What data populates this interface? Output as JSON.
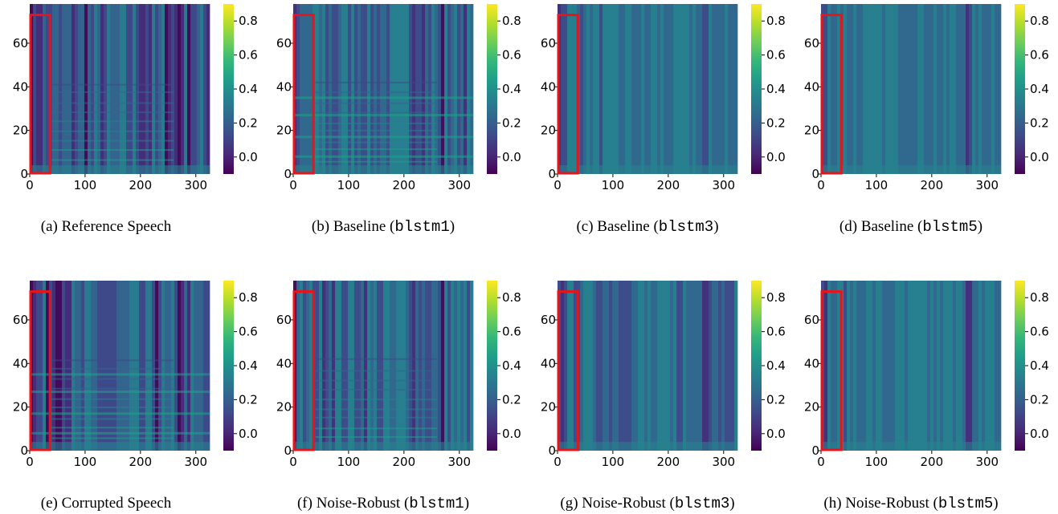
{
  "colors": {
    "viridis": [
      "#440154",
      "#482878",
      "#3e4989",
      "#31688e",
      "#26828e",
      "#1f9e89",
      "#35b779",
      "#6ece58",
      "#b5de2b",
      "#fde725"
    ],
    "highlight_box": "#e8141a"
  },
  "chart_data": [
    {
      "type": "heatmap",
      "panel": "a",
      "caption": "(a) Reference Speech",
      "caption_code": "",
      "xlim": [
        0,
        325
      ],
      "ylim": [
        0,
        78
      ],
      "xticks": [
        0,
        100,
        200,
        300
      ],
      "yticks": [
        0,
        20,
        40,
        60
      ],
      "colorbar": {
        "range": [
          -0.1,
          0.9
        ],
        "ticks": [
          "0.0",
          "0.2",
          "0.4",
          "0.6",
          "0.8"
        ]
      },
      "highlight": {
        "x": [
          0,
          38
        ],
        "y": [
          0,
          73
        ]
      }
    },
    {
      "type": "heatmap",
      "panel": "b",
      "caption": "(b) Baseline (",
      "caption_code": "blstm1",
      "caption_end": ")",
      "xlim": [
        0,
        325
      ],
      "ylim": [
        0,
        78
      ],
      "xticks": [
        0,
        100,
        200,
        300
      ],
      "yticks": [
        0,
        20,
        40,
        60
      ],
      "colorbar": {
        "range": [
          -0.1,
          0.9
        ],
        "ticks": [
          "0.0",
          "0.2",
          "0.4",
          "0.6",
          "0.8"
        ]
      },
      "highlight": {
        "x": [
          0,
          38
        ],
        "y": [
          0,
          73
        ]
      }
    },
    {
      "type": "heatmap",
      "panel": "c",
      "caption": "(c) Baseline (",
      "caption_code": "blstm3",
      "caption_end": ")",
      "xlim": [
        0,
        325
      ],
      "ylim": [
        0,
        78
      ],
      "xticks": [
        0,
        100,
        200,
        300
      ],
      "yticks": [
        0,
        20,
        40,
        60
      ],
      "colorbar": {
        "range": [
          -0.1,
          0.9
        ],
        "ticks": [
          "0.0",
          "0.2",
          "0.4",
          "0.6",
          "0.8"
        ]
      },
      "highlight": {
        "x": [
          0,
          38
        ],
        "y": [
          0,
          73
        ]
      }
    },
    {
      "type": "heatmap",
      "panel": "d",
      "caption": "(d) Baseline (",
      "caption_code": "blstm5",
      "caption_end": ")",
      "xlim": [
        0,
        325
      ],
      "ylim": [
        0,
        78
      ],
      "xticks": [
        0,
        100,
        200,
        300
      ],
      "yticks": [
        0,
        20,
        40,
        60
      ],
      "colorbar": {
        "range": [
          -0.1,
          0.9
        ],
        "ticks": [
          "0.0",
          "0.2",
          "0.4",
          "0.6",
          "0.8"
        ]
      },
      "highlight": {
        "x": [
          0,
          38
        ],
        "y": [
          0,
          73
        ]
      }
    },
    {
      "type": "heatmap",
      "panel": "e",
      "caption": "(e) Corrupted Speech",
      "caption_code": "",
      "xlim": [
        0,
        325
      ],
      "ylim": [
        0,
        78
      ],
      "xticks": [
        0,
        100,
        200,
        300
      ],
      "yticks": [
        0,
        20,
        40,
        60
      ],
      "colorbar": {
        "range": [
          -0.1,
          0.9
        ],
        "ticks": [
          "0.0",
          "0.2",
          "0.4",
          "0.6",
          "0.8"
        ]
      },
      "highlight": {
        "x": [
          0,
          38
        ],
        "y": [
          0,
          73
        ]
      }
    },
    {
      "type": "heatmap",
      "panel": "f",
      "caption": "(f) Noise-Robust (",
      "caption_code": "blstm1",
      "caption_end": ")",
      "xlim": [
        0,
        325
      ],
      "ylim": [
        0,
        78
      ],
      "xticks": [
        0,
        100,
        200,
        300
      ],
      "yticks": [
        0,
        20,
        40,
        60
      ],
      "colorbar": {
        "range": [
          -0.1,
          0.9
        ],
        "ticks": [
          "0.0",
          "0.2",
          "0.4",
          "0.6",
          "0.8"
        ]
      },
      "highlight": {
        "x": [
          0,
          38
        ],
        "y": [
          0,
          73
        ]
      }
    },
    {
      "type": "heatmap",
      "panel": "g",
      "caption": "(g) Noise-Robust (",
      "caption_code": "blstm3",
      "caption_end": ")",
      "xlim": [
        0,
        325
      ],
      "ylim": [
        0,
        78
      ],
      "xticks": [
        0,
        100,
        200,
        300
      ],
      "yticks": [
        0,
        20,
        40,
        60
      ],
      "colorbar": {
        "range": [
          -0.1,
          0.9
        ],
        "ticks": [
          "0.0",
          "0.2",
          "0.4",
          "0.6",
          "0.8"
        ]
      },
      "highlight": {
        "x": [
          0,
          38
        ],
        "y": [
          0,
          73
        ]
      }
    },
    {
      "type": "heatmap",
      "panel": "h",
      "caption": "(h) Noise-Robust (",
      "caption_code": "blstm5",
      "caption_end": ")",
      "xlim": [
        0,
        325
      ],
      "ylim": [
        0,
        78
      ],
      "xticks": [
        0,
        100,
        200,
        300
      ],
      "yticks": [
        0,
        20,
        40,
        60
      ],
      "colorbar": {
        "range": [
          -0.1,
          0.9
        ],
        "ticks": [
          "0.0",
          "0.2",
          "0.4",
          "0.6",
          "0.8"
        ]
      },
      "highlight": {
        "x": [
          0,
          38
        ],
        "y": [
          0,
          73
        ]
      }
    }
  ]
}
